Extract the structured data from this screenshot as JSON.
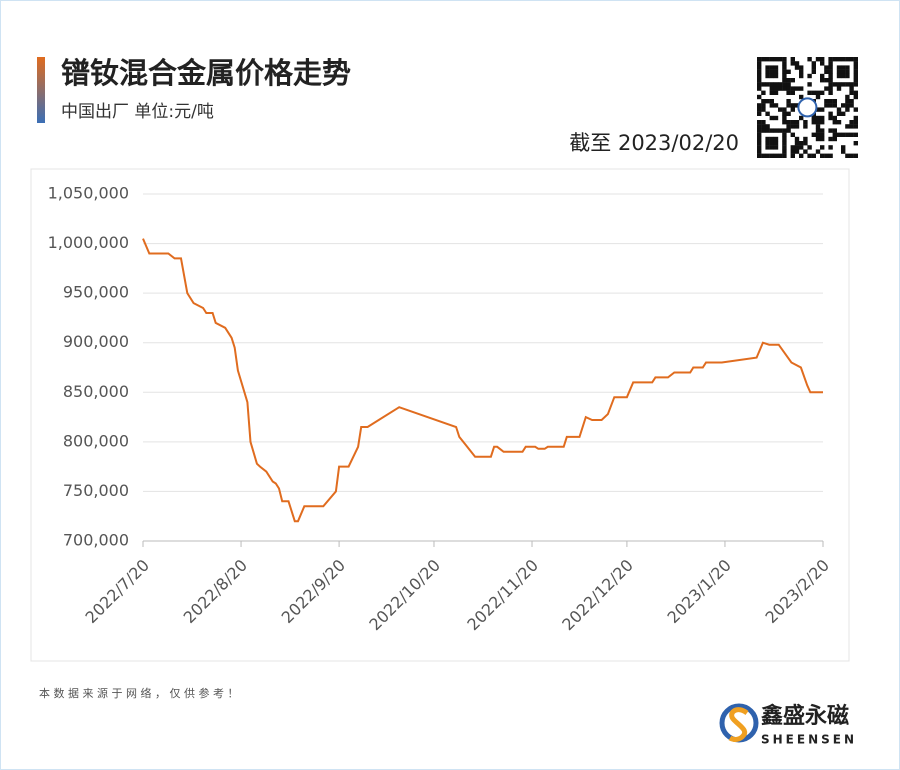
{
  "header": {
    "title": "镨钕混合金属价格走势",
    "subtitle": "中国出厂  单位:元/吨",
    "as_of": "截至 2023/02/20"
  },
  "chart_data": {
    "type": "line",
    "color": "#e06c1f",
    "grid": true,
    "x": [
      "2022/7/20",
      "2022/7/22",
      "2022/7/28",
      "2022/7/30",
      "2022/8/1",
      "2022/8/3",
      "2022/8/5",
      "2022/8/8",
      "2022/8/9",
      "2022/8/11",
      "2022/8/12",
      "2022/8/15",
      "2022/8/17",
      "2022/8/18",
      "2022/8/19",
      "2022/8/22",
      "2022/8/23",
      "2022/8/25",
      "2022/8/26",
      "2022/8/28",
      "2022/8/30",
      "2022/8/31",
      "2022/9/1",
      "2022/9/2",
      "2022/9/4",
      "2022/9/6",
      "2022/9/7",
      "2022/9/9",
      "2022/9/15",
      "2022/9/19",
      "2022/9/20",
      "2022/9/23",
      "2022/9/26",
      "2022/9/27",
      "2022/9/29",
      "2022/10/9",
      "2022/10/27",
      "2022/10/28",
      "2022/10/30",
      "2022/11/2",
      "2022/11/7",
      "2022/11/8",
      "2022/11/9",
      "2022/11/11",
      "2022/11/17",
      "2022/11/18",
      "2022/11/21",
      "2022/11/22",
      "2022/11/24",
      "2022/11/25",
      "2022/11/30",
      "2022/12/1",
      "2022/12/5",
      "2022/12/7",
      "2022/12/9",
      "2022/12/12",
      "2022/12/14",
      "2022/12/16",
      "2022/12/20",
      "2022/12/22",
      "2022/12/28",
      "2022/12/29",
      "2023/1/2",
      "2023/1/4",
      "2023/1/9",
      "2023/1/10",
      "2023/1/13",
      "2023/1/14",
      "2023/1/19",
      "2023/1/30",
      "2023/2/1",
      "2023/2/3",
      "2023/2/6",
      "2023/2/10",
      "2023/2/13",
      "2023/2/15",
      "2023/2/16",
      "2023/2/20"
    ],
    "values": [
      1005000,
      990000,
      990000,
      985000,
      985000,
      950000,
      940000,
      935000,
      930000,
      930000,
      920000,
      915000,
      905000,
      895000,
      872000,
      840000,
      800000,
      778000,
      775000,
      770000,
      760000,
      758000,
      753000,
      740000,
      740000,
      720000,
      720000,
      735000,
      735000,
      750000,
      775000,
      775000,
      795000,
      815000,
      815000,
      835000,
      815000,
      805000,
      797000,
      785000,
      785000,
      795000,
      795000,
      790000,
      790000,
      795000,
      795000,
      793000,
      793000,
      795000,
      795000,
      805000,
      805000,
      825000,
      822000,
      822000,
      828000,
      845000,
      845000,
      860000,
      860000,
      865000,
      865000,
      870000,
      870000,
      875000,
      875000,
      880000,
      880000,
      885000,
      900000,
      898000,
      898000,
      880000,
      875000,
      857000,
      850000,
      850000
    ],
    "xlim": [
      "2022/7/20",
      "2023/2/20"
    ],
    "xticks": [
      "2022/7/20",
      "2022/8/20",
      "2022/9/20",
      "2022/10/20",
      "2022/11/20",
      "2022/12/20",
      "2023/1/20",
      "2023/2/20"
    ],
    "ylim": [
      700000,
      1050000
    ],
    "yticks": [
      {
        "value": 700000,
        "label": "700,000"
      },
      {
        "value": 750000,
        "label": "750,000"
      },
      {
        "value": 800000,
        "label": "800,000"
      },
      {
        "value": 850000,
        "label": "850,000"
      },
      {
        "value": 900000,
        "label": "900,000"
      },
      {
        "value": 950000,
        "label": "950,000"
      },
      {
        "value": 1000000,
        "label": "1,000,000"
      },
      {
        "value": 1050000,
        "label": "1,050,000"
      }
    ]
  },
  "footer": {
    "note": "本 数 据 来 源 于 网 络 ， 仅 供 参 考 ！",
    "brand": "鑫盛永磁",
    "brand_en": "SHEENSEN"
  }
}
